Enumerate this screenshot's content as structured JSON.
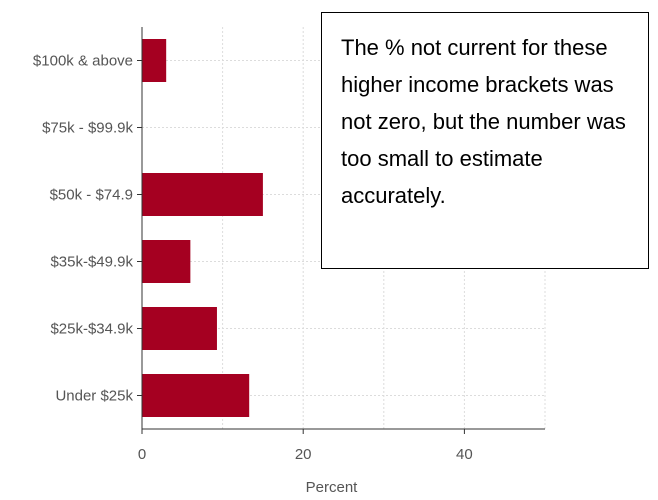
{
  "chart_data": {
    "type": "bar",
    "orientation": "horizontal",
    "categories": [
      "$100k & above",
      "$75k - $99.9k",
      "$50k - $74.9",
      "$35k-$49.9k",
      "$25k-$34.9k",
      "Under $25k"
    ],
    "values": [
      3,
      0,
      15,
      6,
      9.3,
      13.3
    ],
    "xlabel": "Percent",
    "xlim": [
      0,
      50
    ],
    "xticks": [
      0,
      20,
      40
    ],
    "grid": true,
    "bar_color": "#a50021",
    "annotation": "The % not current for these higher income brackets was not zero, but the number was too small to estimate accurately."
  }
}
